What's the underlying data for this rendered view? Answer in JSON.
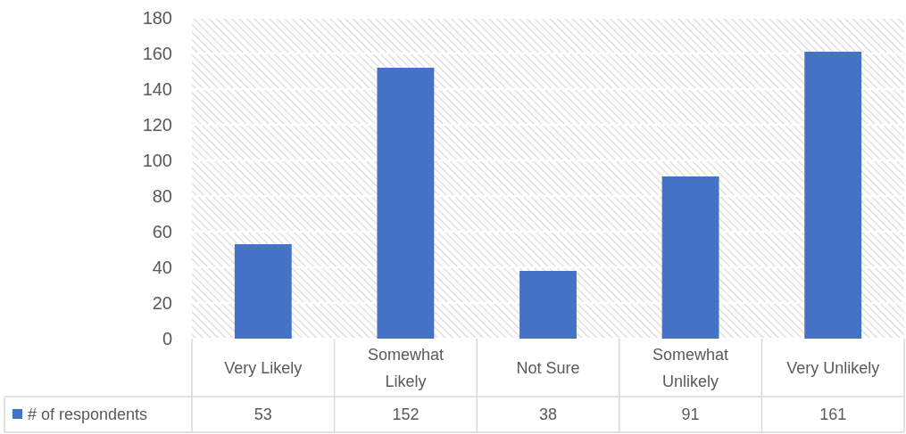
{
  "chart_data": {
    "type": "bar",
    "categories": [
      "Very Likely",
      "Somewhat Likely",
      "Not Sure",
      "Somewhat Unlikely",
      "Very Unlikely"
    ],
    "series": [
      {
        "name": "# of respondents",
        "color": "#4472c4",
        "values": [
          53,
          152,
          38,
          91,
          161
        ]
      }
    ],
    "ylim": [
      0,
      180
    ],
    "yticks": [
      0,
      20,
      40,
      60,
      80,
      100,
      120,
      140,
      160,
      180
    ],
    "grid": "y",
    "legend": "bottom",
    "data_labels": true
  }
}
